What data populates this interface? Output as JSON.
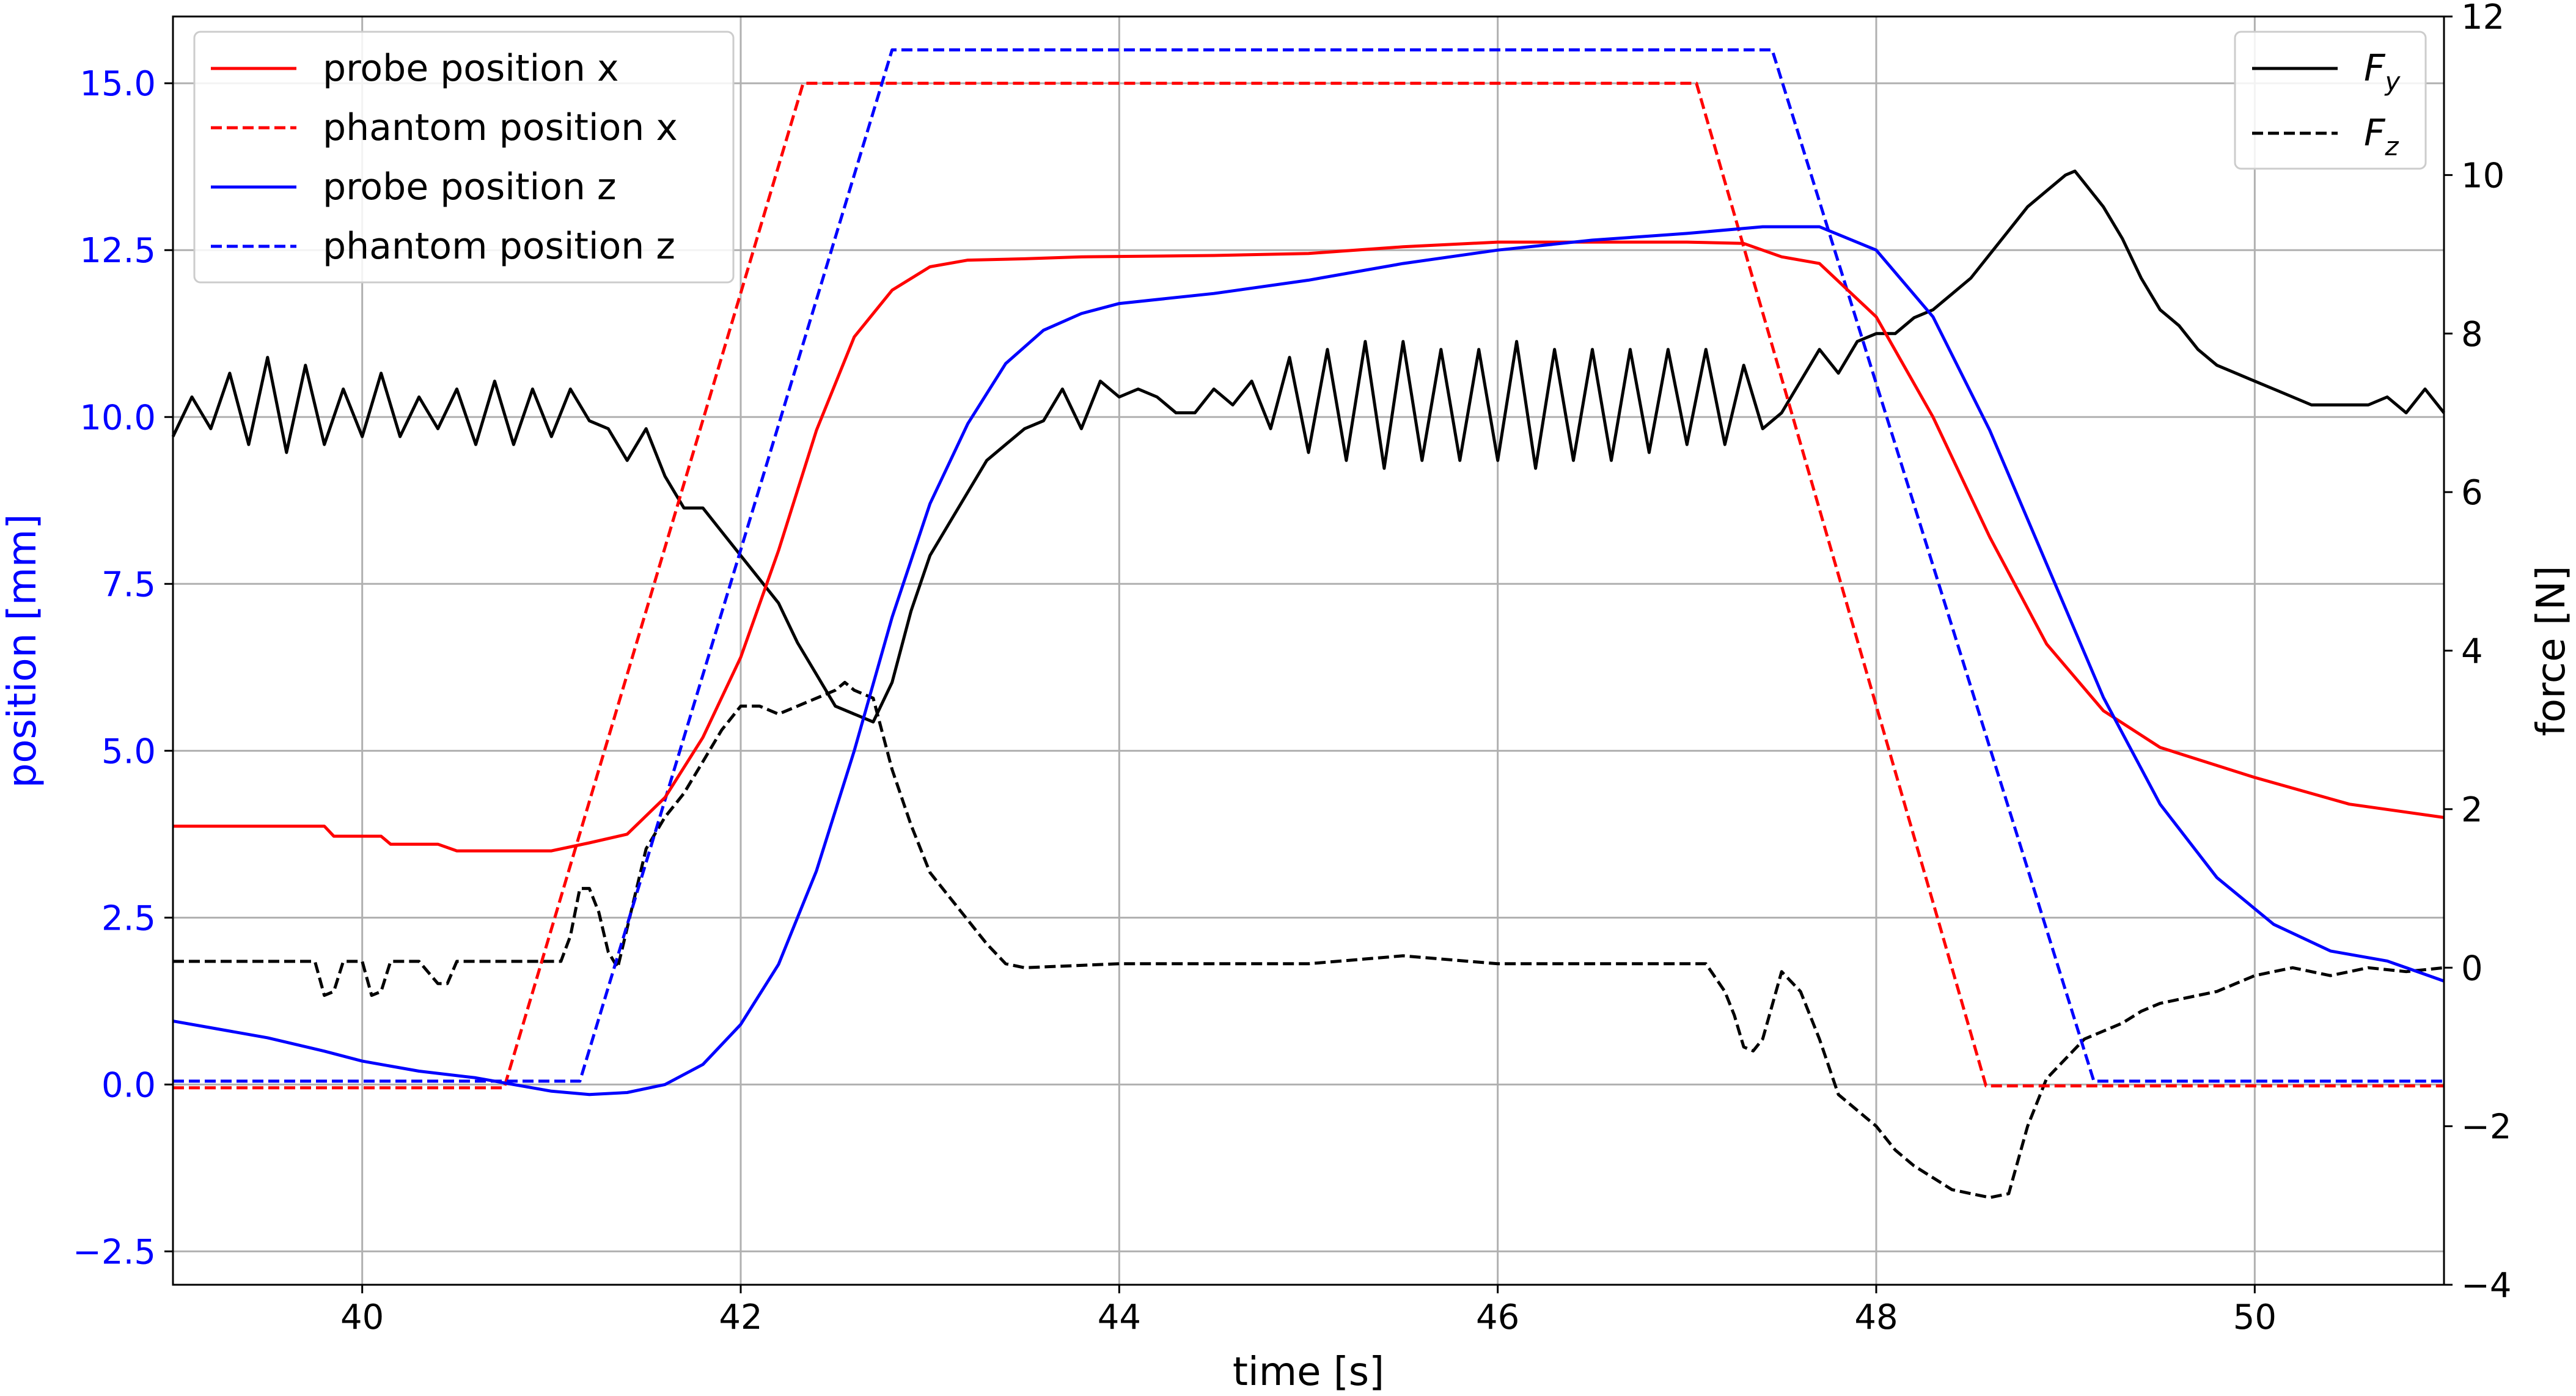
{
  "chart_data": {
    "type": "line",
    "xlabel": "time [s]",
    "ylabel_left": "position [mm]",
    "ylabel_right": "force [N]",
    "xlim": [
      39.0,
      51.0
    ],
    "ylim_left": [
      -3.0,
      16.0
    ],
    "ylim_right": [
      -4.0,
      12.0
    ],
    "xticks": [
      40,
      42,
      44,
      46,
      48,
      50
    ],
    "yticks_left": [
      -2.5,
      0.0,
      2.5,
      5.0,
      7.5,
      10.0,
      12.5,
      15.0
    ],
    "yticks_right": [
      -4,
      -2,
      0,
      2,
      4,
      6,
      8,
      10,
      12
    ],
    "xtick_labels": [
      "40",
      "42",
      "44",
      "46",
      "48",
      "50"
    ],
    "ytick_labels_left": [
      "−2.5",
      "0.0",
      "2.5",
      "5.0",
      "7.5",
      "10.0",
      "12.5",
      "15.0"
    ],
    "ytick_labels_right": [
      "−4",
      "−2",
      "0",
      "2",
      "4",
      "6",
      "8",
      "10",
      "12"
    ],
    "grid": true,
    "left_axis_color": "#0000ff",
    "legend_left": {
      "placement": "top-left",
      "entries": [
        "probe position x",
        "phantom position x",
        "probe position z",
        "phantom position z"
      ]
    },
    "legend_right": {
      "placement": "top-right",
      "entries": [
        "F_y",
        "F_z"
      ]
    },
    "series": [
      {
        "name": "probe position x",
        "axis": "left",
        "color": "#ff0000",
        "dash": "solid",
        "x": [
          39.0,
          39.8,
          39.85,
          40.1,
          40.15,
          40.4,
          40.5,
          41.0,
          41.2,
          41.4,
          41.6,
          41.8,
          42.0,
          42.2,
          42.4,
          42.6,
          42.8,
          43.0,
          43.2,
          43.5,
          43.8,
          44.5,
          45.0,
          45.5,
          46.0,
          46.5,
          47.0,
          47.3,
          47.5,
          47.7,
          48.0,
          48.3,
          48.6,
          48.9,
          49.2,
          49.5,
          50.0,
          50.5,
          51.0
        ],
        "y": [
          3.87,
          3.87,
          3.72,
          3.72,
          3.6,
          3.6,
          3.5,
          3.5,
          3.62,
          3.75,
          4.3,
          5.2,
          6.4,
          8.0,
          9.8,
          11.2,
          11.9,
          12.25,
          12.35,
          12.37,
          12.4,
          12.42,
          12.45,
          12.55,
          12.62,
          12.62,
          12.62,
          12.6,
          12.4,
          12.3,
          11.5,
          10.0,
          8.2,
          6.6,
          5.6,
          5.05,
          4.6,
          4.2,
          4.0
        ]
      },
      {
        "name": "phantom position x",
        "axis": "left",
        "color": "#ff0000",
        "dash": "dashed",
        "x": [
          39.0,
          40.75,
          42.33,
          47.05,
          48.58,
          51.0
        ],
        "y": [
          -0.05,
          -0.05,
          15.0,
          15.0,
          -0.02,
          -0.02
        ]
      },
      {
        "name": "probe position z",
        "axis": "left",
        "color": "#0000ff",
        "dash": "solid",
        "x": [
          39.0,
          39.2,
          39.5,
          39.8,
          40.0,
          40.3,
          40.6,
          40.8,
          41.0,
          41.2,
          41.4,
          41.6,
          41.8,
          42.0,
          42.2,
          42.4,
          42.6,
          42.8,
          43.0,
          43.2,
          43.4,
          43.6,
          43.8,
          44.0,
          44.5,
          45.0,
          45.5,
          46.0,
          46.5,
          47.0,
          47.4,
          47.7,
          48.0,
          48.3,
          48.6,
          48.9,
          49.2,
          49.5,
          49.8,
          50.1,
          50.4,
          50.7,
          51.0
        ],
        "y": [
          0.95,
          0.85,
          0.7,
          0.5,
          0.35,
          0.2,
          0.1,
          0.0,
          -0.1,
          -0.15,
          -0.12,
          0.0,
          0.3,
          0.9,
          1.8,
          3.2,
          5.0,
          7.0,
          8.7,
          9.9,
          10.8,
          11.3,
          11.55,
          11.7,
          11.85,
          12.05,
          12.3,
          12.5,
          12.65,
          12.75,
          12.85,
          12.85,
          12.5,
          11.5,
          9.8,
          7.8,
          5.8,
          4.2,
          3.1,
          2.4,
          2.0,
          1.85,
          1.55
        ]
      },
      {
        "name": "phantom position z",
        "axis": "left",
        "color": "#0000ff",
        "dash": "dashed",
        "x": [
          39.0,
          41.15,
          42.8,
          47.45,
          49.15,
          51.0
        ],
        "y": [
          0.05,
          0.05,
          15.5,
          15.5,
          0.05,
          0.05
        ]
      },
      {
        "name": "F_y",
        "axis": "right",
        "color": "#000000",
        "dash": "solid",
        "x": [
          39.0,
          39.1,
          39.2,
          39.3,
          39.4,
          39.5,
          39.6,
          39.7,
          39.8,
          39.9,
          40.0,
          40.1,
          40.2,
          40.3,
          40.4,
          40.5,
          40.6,
          40.7,
          40.8,
          40.9,
          41.0,
          41.1,
          41.2,
          41.3,
          41.4,
          41.5,
          41.6,
          41.7,
          41.8,
          41.9,
          42.0,
          42.1,
          42.2,
          42.3,
          42.4,
          42.5,
          42.6,
          42.7,
          42.8,
          42.9,
          43.0,
          43.1,
          43.2,
          43.3,
          43.4,
          43.5,
          43.6,
          43.7,
          43.8,
          43.9,
          44.0,
          44.1,
          44.2,
          44.3,
          44.4,
          44.5,
          44.6,
          44.7,
          44.8,
          44.9,
          45.0,
          45.1,
          45.2,
          45.3,
          45.4,
          45.5,
          45.6,
          45.7,
          45.8,
          45.9,
          46.0,
          46.1,
          46.2,
          46.3,
          46.4,
          46.5,
          46.6,
          46.7,
          46.8,
          46.9,
          47.0,
          47.1,
          47.2,
          47.3,
          47.4,
          47.5,
          47.6,
          47.7,
          47.8,
          47.9,
          48.0,
          48.1,
          48.2,
          48.3,
          48.4,
          48.5,
          48.6,
          48.7,
          48.8,
          48.9,
          49.0,
          49.05,
          49.1,
          49.2,
          49.3,
          49.4,
          49.5,
          49.6,
          49.7,
          49.8,
          49.9,
          50.0,
          50.1,
          50.2,
          50.3,
          50.4,
          50.5,
          50.6,
          50.7,
          50.8,
          50.9,
          51.0
        ],
        "y": [
          6.7,
          7.2,
          6.8,
          7.5,
          6.6,
          7.7,
          6.5,
          7.6,
          6.6,
          7.3,
          6.7,
          7.5,
          6.7,
          7.2,
          6.8,
          7.3,
          6.6,
          7.4,
          6.6,
          7.3,
          6.7,
          7.3,
          6.9,
          6.8,
          6.4,
          6.8,
          6.2,
          5.8,
          5.8,
          5.5,
          5.2,
          4.9,
          4.6,
          4.1,
          3.7,
          3.3,
          3.2,
          3.1,
          3.6,
          4.5,
          5.2,
          5.6,
          6.0,
          6.4,
          6.6,
          6.8,
          6.9,
          7.3,
          6.8,
          7.4,
          7.2,
          7.3,
          7.2,
          7.0,
          7.0,
          7.3,
          7.1,
          7.4,
          6.8,
          7.7,
          6.5,
          7.8,
          6.4,
          7.9,
          6.3,
          7.9,
          6.4,
          7.8,
          6.4,
          7.8,
          6.4,
          7.9,
          6.3,
          7.8,
          6.4,
          7.8,
          6.4,
          7.8,
          6.5,
          7.8,
          6.6,
          7.8,
          6.6,
          7.6,
          6.8,
          7.0,
          7.4,
          7.8,
          7.5,
          7.9,
          8.0,
          8.0,
          8.2,
          8.3,
          8.5,
          8.7,
          9.0,
          9.3,
          9.6,
          9.8,
          10.0,
          10.05,
          9.9,
          9.6,
          9.2,
          8.7,
          8.3,
          8.1,
          7.8,
          7.6,
          7.5,
          7.4,
          7.3,
          7.2,
          7.1,
          7.1,
          7.1,
          7.1,
          7.2,
          7.0,
          7.3,
          7.0
        ]
      },
      {
        "name": "F_z",
        "axis": "right",
        "color": "#000000",
        "dash": "dashed",
        "x": [
          39.0,
          39.75,
          39.8,
          39.85,
          39.9,
          40.0,
          40.05,
          40.1,
          40.15,
          40.3,
          40.4,
          40.45,
          40.5,
          41.05,
          41.1,
          41.15,
          41.2,
          41.25,
          41.3,
          41.35,
          41.4,
          41.5,
          41.6,
          41.7,
          41.8,
          41.9,
          42.0,
          42.1,
          42.2,
          42.3,
          42.4,
          42.5,
          42.55,
          42.6,
          42.7,
          42.8,
          42.9,
          43.0,
          43.1,
          43.2,
          43.3,
          43.4,
          43.5,
          44.0,
          44.5,
          45.0,
          45.5,
          46.0,
          46.5,
          47.0,
          47.1,
          47.2,
          47.25,
          47.3,
          47.35,
          47.4,
          47.5,
          47.6,
          47.7,
          47.8,
          47.9,
          48.0,
          48.1,
          48.2,
          48.3,
          48.4,
          48.5,
          48.6,
          48.7,
          48.8,
          48.9,
          49.0,
          49.1,
          49.2,
          49.3,
          49.4,
          49.5,
          49.6,
          49.7,
          49.8,
          49.9,
          50.0,
          50.2,
          50.4,
          50.6,
          50.8,
          51.0
        ],
        "y": [
          0.08,
          0.08,
          -0.35,
          -0.3,
          0.08,
          0.08,
          -0.35,
          -0.3,
          0.08,
          0.08,
          -0.2,
          -0.2,
          0.08,
          0.08,
          0.4,
          1.0,
          1.0,
          0.7,
          0.2,
          0.0,
          0.5,
          1.5,
          1.9,
          2.2,
          2.6,
          3.0,
          3.3,
          3.3,
          3.2,
          3.3,
          3.4,
          3.5,
          3.6,
          3.5,
          3.4,
          2.5,
          1.8,
          1.2,
          0.9,
          0.6,
          0.3,
          0.05,
          0.0,
          0.05,
          0.05,
          0.05,
          0.15,
          0.05,
          0.05,
          0.05,
          0.05,
          -0.3,
          -0.6,
          -1.0,
          -1.05,
          -0.9,
          -0.05,
          -0.3,
          -0.9,
          -1.6,
          -1.8,
          -2.0,
          -2.3,
          -2.5,
          -2.65,
          -2.8,
          -2.85,
          -2.9,
          -2.85,
          -2.0,
          -1.4,
          -1.15,
          -0.9,
          -0.8,
          -0.7,
          -0.55,
          -0.45,
          -0.4,
          -0.35,
          -0.3,
          -0.2,
          -0.1,
          0.0,
          -0.1,
          0.0,
          -0.05,
          0.0
        ]
      }
    ]
  }
}
